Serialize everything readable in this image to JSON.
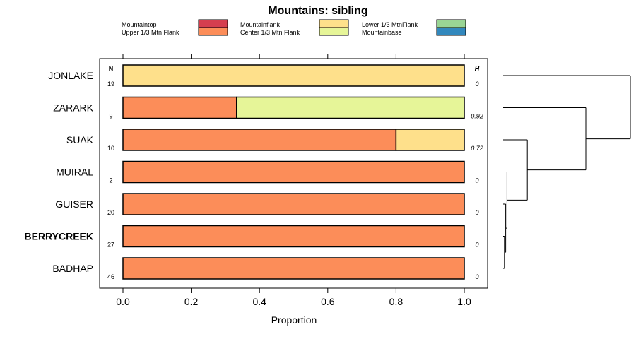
{
  "chart_data": {
    "type": "bar",
    "orientation": "horizontal",
    "stacked": true,
    "title": "Mountains: sibling",
    "xlabel": "Proportion",
    "ylabel": "",
    "xlim": [
      0.0,
      1.0
    ],
    "x_ticks": [
      "0.0",
      "0.2",
      "0.4",
      "0.6",
      "0.8",
      "1.0"
    ],
    "x_tick_values": [
      0.0,
      0.2,
      0.4,
      0.6,
      0.8,
      1.0
    ],
    "n_header": "N",
    "h_header": "H",
    "legend": [
      {
        "name": "Mountaintop",
        "color": "#d53e4f"
      },
      {
        "name": "Upper 1/3 Mtn Flank",
        "color": "#fc8d59"
      },
      {
        "name": "Mountainflank",
        "color": "#fee08b"
      },
      {
        "name": "Center 1/3 Mtn Flank",
        "color": "#e6f598"
      },
      {
        "name": "Lower 1/3 MtnFlank",
        "color": "#99d594"
      },
      {
        "name": "Mountainbase",
        "color": "#3288bd"
      }
    ],
    "categories": [
      {
        "name": "JONLAKE",
        "n": "19",
        "h": "0",
        "bold": false,
        "segments": [
          {
            "series": "Mountainflank",
            "value": 1.0
          }
        ]
      },
      {
        "name": "ZARARK",
        "n": "9",
        "h": "0.92",
        "bold": false,
        "segments": [
          {
            "series": "Upper 1/3 Mtn Flank",
            "value": 0.333
          },
          {
            "series": "Center 1/3 Mtn Flank",
            "value": 0.667
          }
        ]
      },
      {
        "name": "SUAK",
        "n": "10",
        "h": "0.72",
        "bold": false,
        "segments": [
          {
            "series": "Upper 1/3 Mtn Flank",
            "value": 0.8
          },
          {
            "series": "Mountainflank",
            "value": 0.2
          }
        ]
      },
      {
        "name": "MUIRAL",
        "n": "2",
        "h": "0",
        "bold": false,
        "segments": [
          {
            "series": "Upper 1/3 Mtn Flank",
            "value": 1.0
          }
        ]
      },
      {
        "name": "GUISER",
        "n": "20",
        "h": "0",
        "bold": false,
        "segments": [
          {
            "series": "Upper 1/3 Mtn Flank",
            "value": 1.0
          }
        ]
      },
      {
        "name": "BERRYCREEK",
        "n": "27",
        "h": "0",
        "bold": true,
        "segments": [
          {
            "series": "Upper 1/3 Mtn Flank",
            "value": 1.0
          }
        ]
      },
      {
        "name": "BADHAP",
        "n": "46",
        "h": "0",
        "bold": false,
        "segments": [
          {
            "series": "Upper 1/3 Mtn Flank",
            "value": 1.0
          }
        ]
      }
    ],
    "dendrogram": {
      "type": "tree",
      "leaves": [
        "JONLAKE",
        "ZARARK",
        "SUAK",
        "MUIRAL",
        "GUISER",
        "BERRYCREEK",
        "BADHAP"
      ],
      "merges": [
        {
          "a": "BERRYCREEK",
          "b": "BADHAP",
          "height": 0.01
        },
        {
          "a": "GUISER",
          "b": "m1",
          "height": 0.02
        },
        {
          "a": "MUIRAL",
          "b": "m2",
          "height": 0.03
        },
        {
          "a": "SUAK",
          "b": "m3",
          "height": 0.19
        },
        {
          "a": "ZARARK",
          "b": "m4",
          "height": 0.65
        },
        {
          "a": "JONLAKE",
          "b": "m5",
          "height": 1.0
        }
      ]
    }
  }
}
